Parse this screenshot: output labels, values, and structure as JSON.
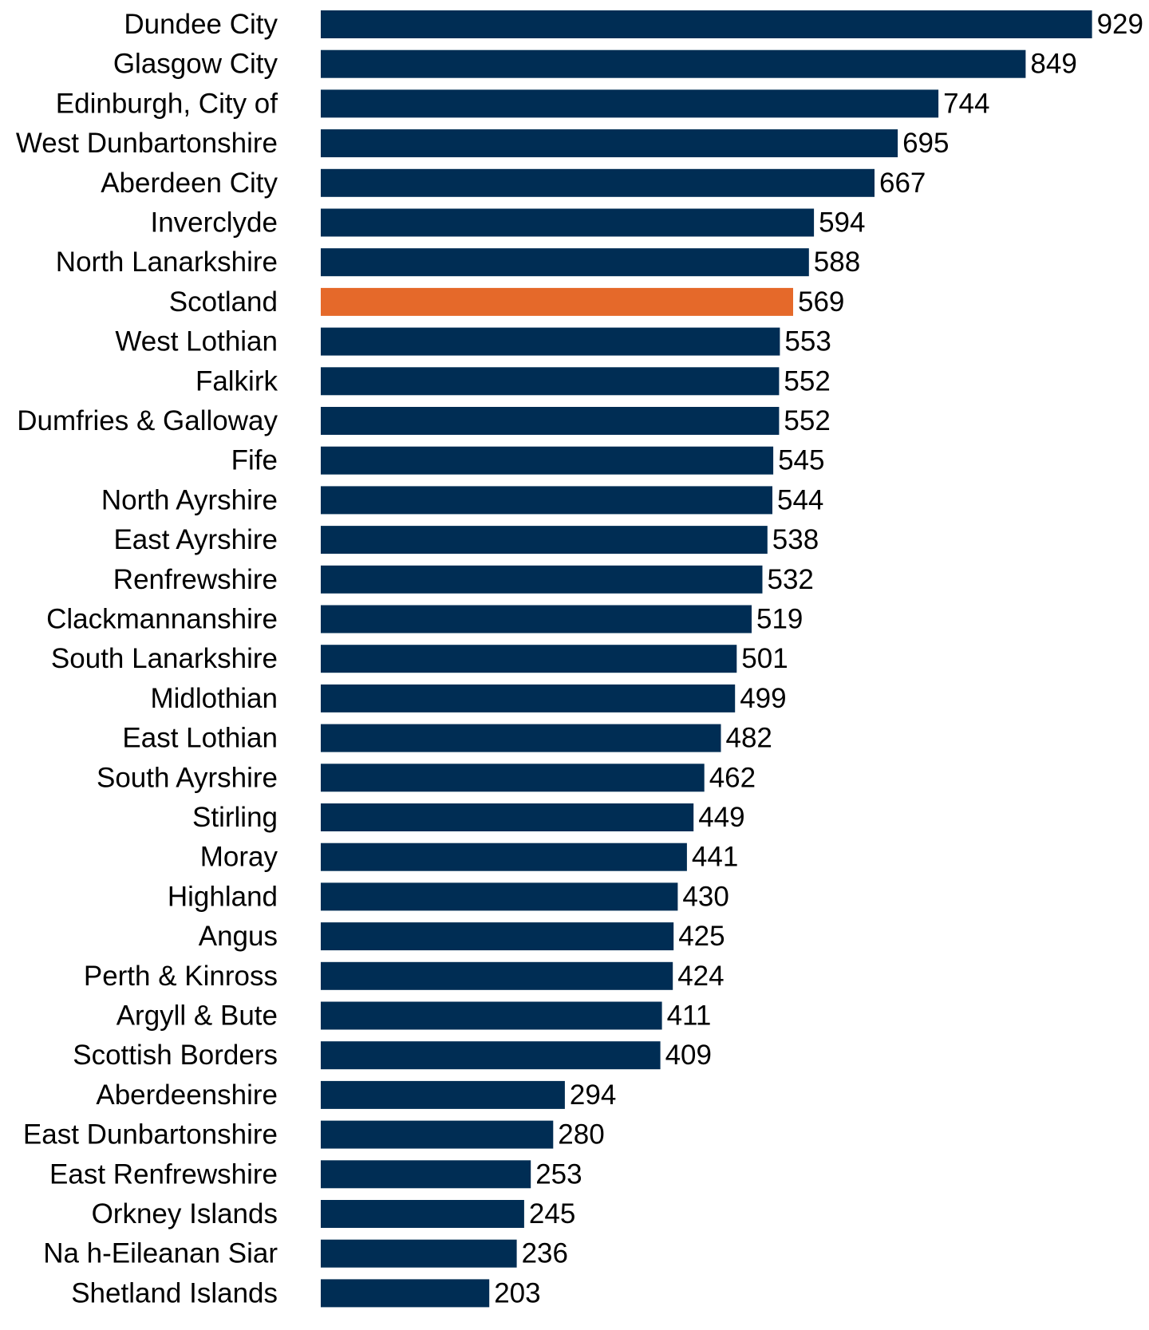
{
  "chart_data": {
    "type": "bar",
    "orientation": "horizontal",
    "title": "",
    "xlabel": "",
    "ylabel": "",
    "xlim": [
      0,
      1000
    ],
    "grid": false,
    "legend": "none",
    "bar_color": "#002D54",
    "highlight_color": "#E5692A",
    "highlight_category": "Scotland",
    "categories": [
      "Dundee City",
      "Glasgow City",
      "Edinburgh, City of",
      "West Dunbartonshire",
      "Aberdeen City",
      "Inverclyde",
      "North Lanarkshire",
      "Scotland",
      "West Lothian",
      "Falkirk",
      "Dumfries & Galloway",
      "Fife",
      "North Ayrshire",
      "East Ayrshire",
      "Renfrewshire",
      "Clackmannanshire",
      "South Lanarkshire",
      "Midlothian",
      "East Lothian",
      "South Ayrshire",
      "Stirling",
      "Moray",
      "Highland",
      "Angus",
      "Perth & Kinross",
      "Argyll & Bute",
      "Scottish Borders",
      "Aberdeenshire",
      "East Dunbartonshire",
      "East Renfrewshire",
      "Orkney Islands",
      "Na h-Eileanan Siar",
      "Shetland Islands"
    ],
    "values": [
      929,
      849,
      744,
      695,
      667,
      594,
      588,
      569,
      553,
      552,
      552,
      545,
      544,
      538,
      532,
      519,
      501,
      499,
      482,
      462,
      449,
      441,
      430,
      425,
      424,
      411,
      409,
      294,
      280,
      253,
      245,
      236,
      203
    ]
  }
}
